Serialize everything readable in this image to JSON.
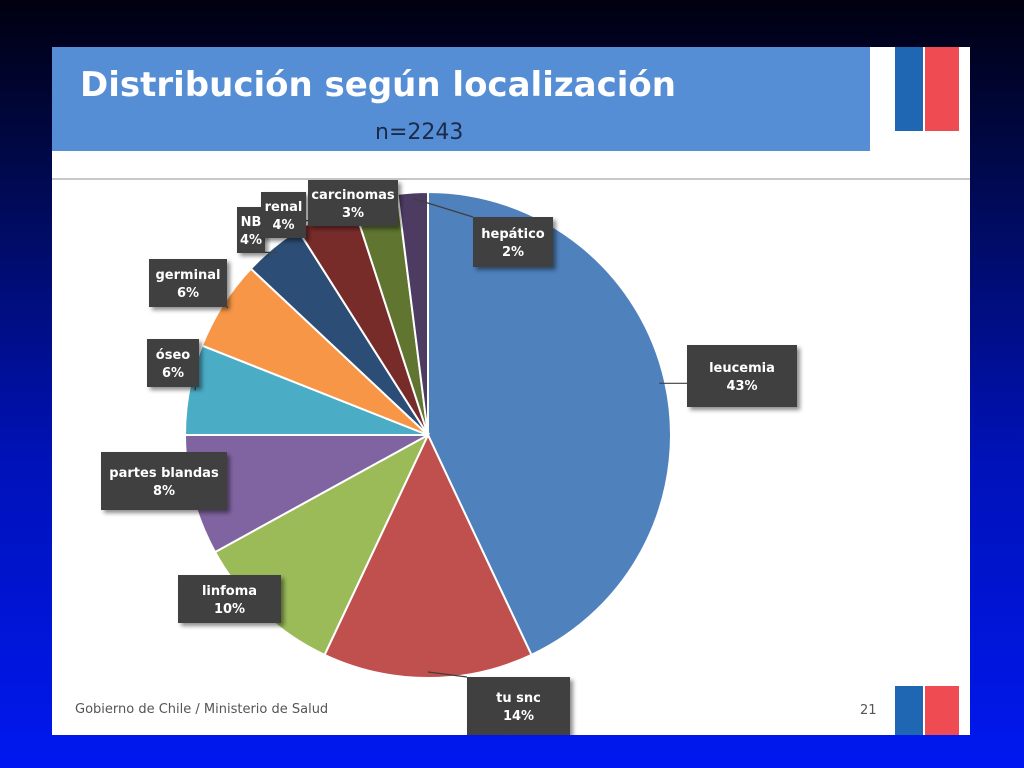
{
  "slide": {
    "title": "Distribución según localización",
    "subtitle": "n=2243",
    "footer": "Gobierno de Chile / Ministerio de Salud",
    "page_number": "21"
  },
  "colors": {
    "title_bar": "#558ed5",
    "flag_blue": "#1f66b3",
    "flag_red": "#ee4b53",
    "label_box": "#3f3f3f"
  },
  "chart_data": {
    "type": "pie",
    "title": "Distribución según localización",
    "subtitle": "n=2243",
    "slices": [
      {
        "label": "leucemia",
        "value": 43,
        "display": "43%",
        "color": "#4f81bd"
      },
      {
        "label": "tu snc",
        "value": 14,
        "display": "14%",
        "color": "#c0504d"
      },
      {
        "label": "linfoma",
        "value": 10,
        "display": "10%",
        "color": "#9bbb59"
      },
      {
        "label": "partes blandas",
        "value": 8,
        "display": "8%",
        "color": "#8064a2"
      },
      {
        "label": "óseo",
        "value": 6,
        "display": "6%",
        "color": "#4bacc6"
      },
      {
        "label": "germinal",
        "value": 6,
        "display": "6%",
        "color": "#f79646"
      },
      {
        "label": "NB",
        "value": 4,
        "display": "4%",
        "color": "#2c4d75"
      },
      {
        "label": "renal",
        "value": 4,
        "display": "4%",
        "color": "#772c2a"
      },
      {
        "label": "carcinomas",
        "value": 3,
        "display": "3%",
        "color": "#5f7530"
      },
      {
        "label": "hepático",
        "value": 2,
        "display": "2%",
        "color": "#4d3b62"
      }
    ]
  }
}
